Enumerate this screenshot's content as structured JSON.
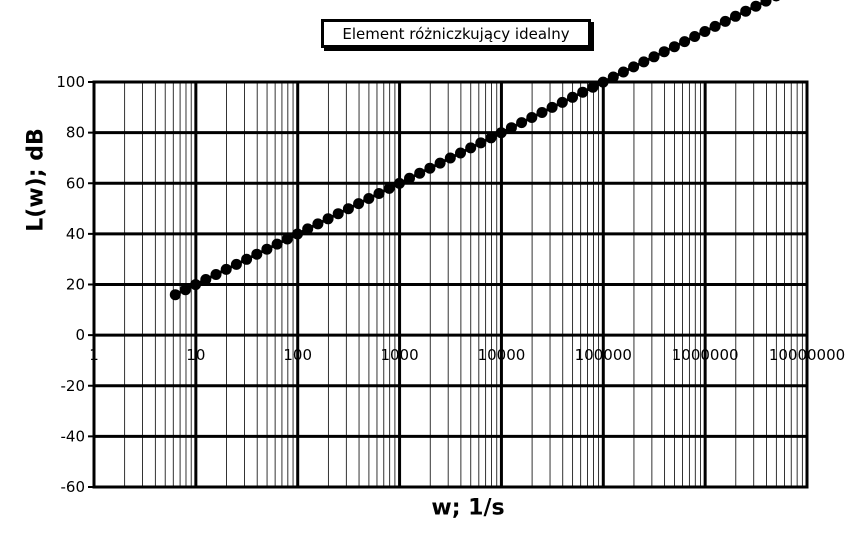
{
  "chart_data": {
    "type": "scatter",
    "title": "Element różniczkujący idealny",
    "xlabel": "w; 1/s",
    "ylabel": "L(w); dB",
    "x_scale": "log",
    "xlim": [
      1,
      10000000
    ],
    "ylim": [
      -60,
      100
    ],
    "x_ticks": [
      "1",
      "10",
      "100",
      "1000",
      "10000",
      "100000",
      "1000000",
      "10000000"
    ],
    "y_ticks": [
      "100",
      "80",
      "60",
      "40",
      "20",
      "0",
      "-20",
      "-40",
      "-60"
    ],
    "grid": true,
    "legend": "none",
    "series": [
      {
        "x_range": [
          6.28,
          6280000
        ],
        "points_per_decade": 10,
        "formula": "L = 20*log10(w)",
        "color": "#000000"
      }
    ]
  }
}
